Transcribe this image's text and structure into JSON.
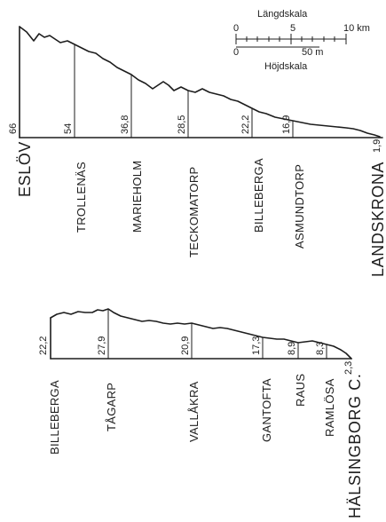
{
  "profile_1": {
    "stations": [
      {
        "name": "ESLÖV",
        "elevation": "66"
      },
      {
        "name": "TROLLENÄS",
        "elevation": "54"
      },
      {
        "name": "MARIEHOLM",
        "elevation": "36,8"
      },
      {
        "name": "TECKOMATORP",
        "elevation": "28,5"
      },
      {
        "name": "BILLEBERGA",
        "elevation": "22,2"
      },
      {
        "name": "ASMUNDTORP",
        "elevation": "16,9"
      },
      {
        "name": "LANDSKRONA",
        "elevation": "1,9"
      }
    ]
  },
  "profile_2": {
    "stations": [
      {
        "name": "BILLEBERGA",
        "elevation": "22,2"
      },
      {
        "name": "TÅGARP",
        "elevation": "27,9"
      },
      {
        "name": "VALLÅKRA",
        "elevation": "20,9"
      },
      {
        "name": "GANTOFTA",
        "elevation": "17,3"
      },
      {
        "name": "RAUS",
        "elevation": "8,9"
      },
      {
        "name": "RAMLÖSA",
        "elevation": "8,3"
      },
      {
        "name": "HÄLSINGBORG C.",
        "elevation": "2,3"
      }
    ]
  },
  "scale": {
    "length_title": "Längdskala",
    "length_ticks": [
      "0",
      "5",
      "10 km"
    ],
    "height_ticks": [
      "0",
      "50 m"
    ],
    "height_title": "Höjdskala"
  }
}
